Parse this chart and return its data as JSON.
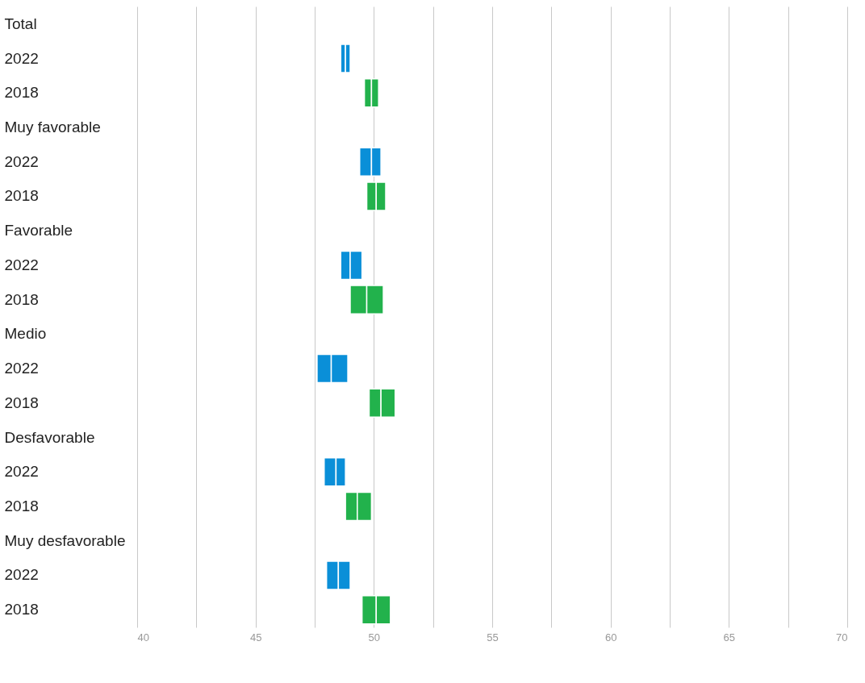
{
  "chart_data": {
    "type": "bar",
    "orientation": "horizontal",
    "grid": "x",
    "categories": [
      "Total",
      "2022",
      "2018",
      "Muy favorable",
      "2022",
      "2018",
      "Favorable",
      "2022",
      "2018",
      "Medio",
      "2022",
      "2018",
      "Desfavorable",
      "2022",
      "2018",
      "Muy desfavorable",
      "2022",
      "2018"
    ],
    "series": [
      {
        "base": [
          null,
          48.6,
          49.6,
          null,
          49.4,
          49.7,
          null,
          48.6,
          49.0,
          null,
          47.6,
          49.8,
          null,
          47.9,
          48.8,
          null,
          48.0,
          49.5
        ],
        "values": [
          null,
          0.2,
          0.3,
          null,
          0.5,
          0.4,
          null,
          0.4,
          0.7,
          null,
          0.6,
          0.5,
          null,
          0.5,
          0.5,
          null,
          0.5,
          0.6
        ],
        "colors": [
          null,
          "#0a8fd8",
          "#22b24c",
          null,
          "#0a8fd8",
          "#22b24c",
          null,
          "#0a8fd8",
          "#22b24c",
          null,
          "#0a8fd8",
          "#22b24c",
          null,
          "#0a8fd8",
          "#22b24c",
          null,
          "#0a8fd8",
          "#22b24c"
        ]
      },
      {
        "base": [
          null,
          48.8,
          49.9,
          null,
          49.9,
          50.1,
          null,
          49.0,
          49.7,
          null,
          48.2,
          50.3,
          null,
          48.4,
          49.3,
          null,
          48.5,
          50.1
        ],
        "values": [
          null,
          0.2,
          0.3,
          null,
          0.4,
          0.4,
          null,
          0.5,
          0.7,
          null,
          0.7,
          0.6,
          null,
          0.4,
          0.6,
          null,
          0.5,
          0.6
        ],
        "colors": [
          null,
          "#0a8fd8",
          "#22b24c",
          null,
          "#0a8fd8",
          "#22b24c",
          null,
          "#0a8fd8",
          "#22b24c",
          null,
          "#0a8fd8",
          "#22b24c",
          null,
          "#0a8fd8",
          "#22b24c",
          null,
          "#0a8fd8",
          "#22b24c"
        ]
      }
    ],
    "xlim": [
      40,
      70
    ],
    "xticks": [
      40,
      {
        "value": 42.5,
        "label": null
      },
      45,
      {
        "value": 47.5,
        "label": null
      },
      50,
      {
        "value": 52.5,
        "label": null
      },
      55,
      {
        "value": 57.5,
        "label": null
      },
      60,
      {
        "value": 62.5,
        "label": null
      },
      65,
      {
        "value": 67.5,
        "label": null
      },
      70
    ]
  }
}
